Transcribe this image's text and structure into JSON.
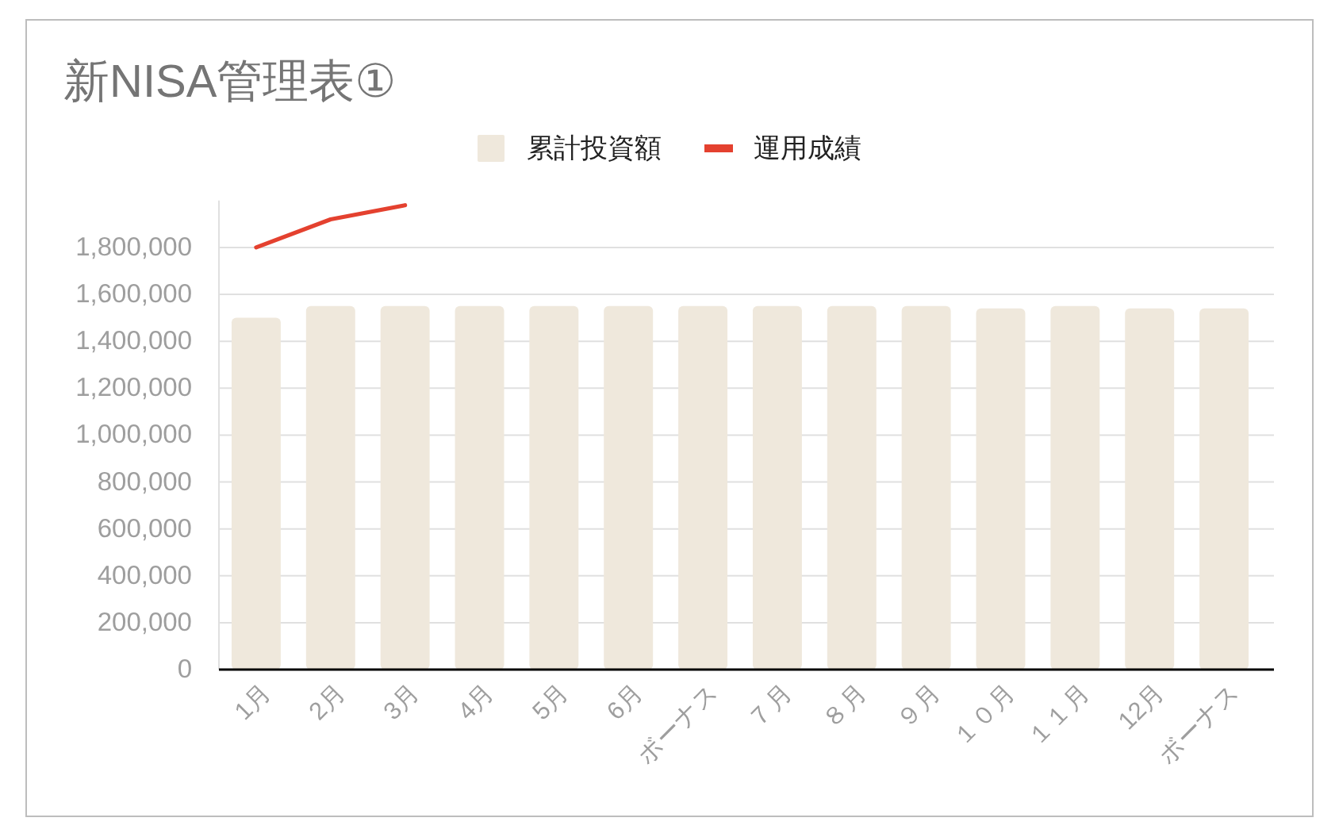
{
  "chart_data": {
    "type": "bar",
    "title": "新NISA管理表①",
    "categories": [
      "1月",
      "2月",
      "3月",
      "4月",
      "5月",
      "6月",
      "ボーナス",
      "７月",
      "８月",
      "９月",
      "１０月",
      "１１月",
      "12月",
      "ボーナス"
    ],
    "series": [
      {
        "name": "累計投資額",
        "color": "#efe8dc",
        "values": [
          1500000,
          1550000,
          1550000,
          1550000,
          1550000,
          1550000,
          1550000,
          1550000,
          1550000,
          1550000,
          1540000,
          1550000,
          1540000,
          1540000
        ]
      },
      {
        "name": "運用成績",
        "type": "line",
        "color": "#e4412f",
        "values": [
          1800000,
          1920000,
          1980000,
          null,
          null,
          null,
          null,
          null,
          null,
          null,
          null,
          null,
          null,
          null
        ]
      }
    ],
    "ylim": [
      0,
      2000000
    ],
    "yticks": [
      {
        "value": 0,
        "label": "0"
      },
      {
        "value": 200000,
        "label": "200,000"
      },
      {
        "value": 400000,
        "label": "400,000"
      },
      {
        "value": 600000,
        "label": "600,000"
      },
      {
        "value": 800000,
        "label": "800,000"
      },
      {
        "value": 1000000,
        "label": "1,000,000"
      },
      {
        "value": 1200000,
        "label": "1,200,000"
      },
      {
        "value": 1400000,
        "label": "1,400,000"
      },
      {
        "value": 1600000,
        "label": "1,600,000"
      },
      {
        "value": 1800000,
        "label": "1,800,000"
      }
    ],
    "grid": "y",
    "legend": "top"
  }
}
